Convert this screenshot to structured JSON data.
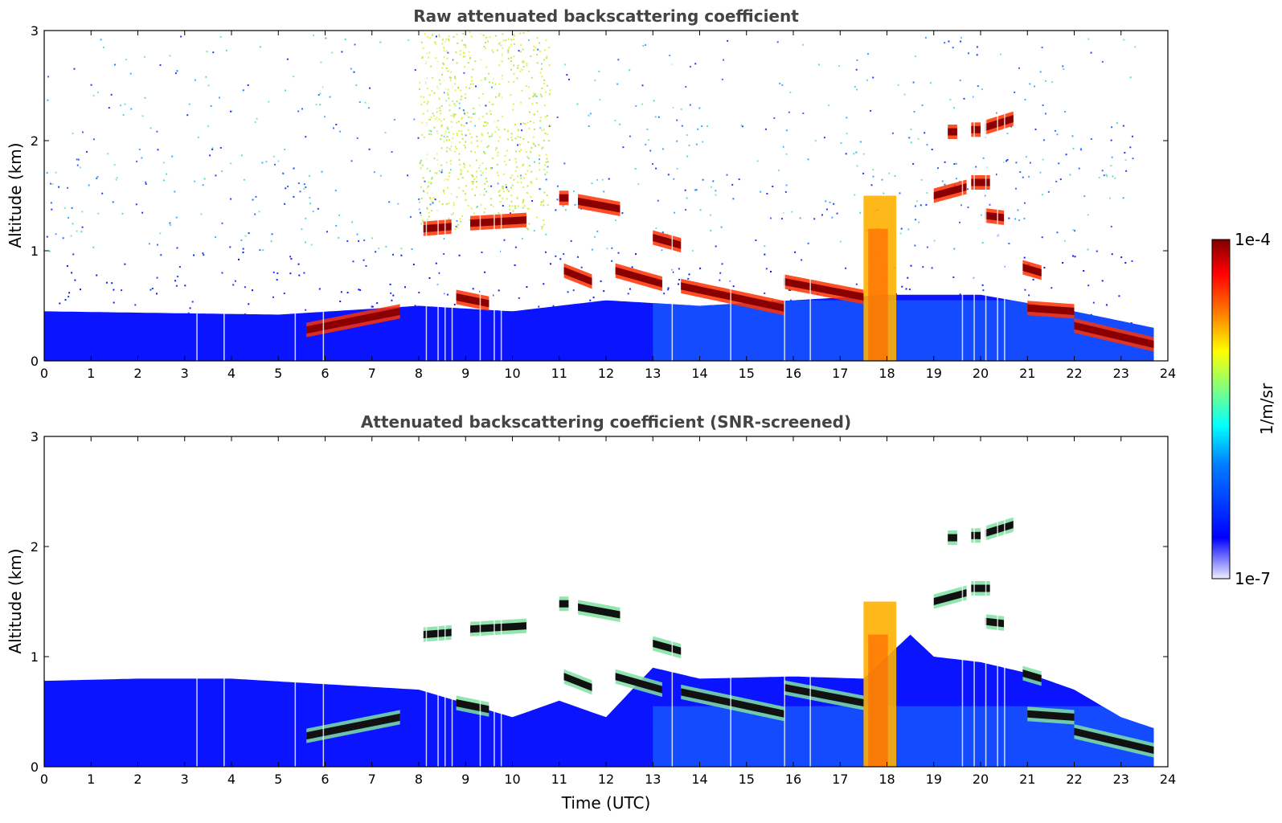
{
  "chart_data": [
    {
      "type": "heatmap",
      "title": "Raw attenuated backscattering coefficient",
      "xlabel": "",
      "ylabel": "Altitude (km)",
      "xlim": [
        0,
        24
      ],
      "ylim": [
        0,
        3
      ],
      "x_ticks": [
        "0",
        "1",
        "2",
        "3",
        "4",
        "5",
        "6",
        "7",
        "8",
        "9",
        "10",
        "11",
        "12",
        "13",
        "14",
        "15",
        "16",
        "17",
        "18",
        "19",
        "20",
        "21",
        "22",
        "23",
        "24"
      ],
      "y_ticks": [
        "0",
        "1",
        "2",
        "3"
      ],
      "data_end_hour": 23.7,
      "boundary_layer_top_km": [
        [
          0,
          0.45
        ],
        [
          5,
          0.42
        ],
        [
          8,
          0.5
        ],
        [
          10,
          0.45
        ],
        [
          12,
          0.55
        ],
        [
          14,
          0.5
        ],
        [
          16,
          0.55
        ],
        [
          18,
          0.6
        ],
        [
          20,
          0.6
        ],
        [
          22,
          0.45
        ],
        [
          23.7,
          0.3
        ]
      ],
      "aerosol_layers": [
        {
          "x_start": 5.6,
          "x_end": 7.6,
          "alt_start_km": 0.28,
          "alt_end_km": 0.45
        },
        {
          "x_start": 8.1,
          "x_end": 8.7,
          "alt_start_km": 1.2,
          "alt_end_km": 1.22
        },
        {
          "x_start": 8.8,
          "x_end": 9.5,
          "alt_start_km": 0.58,
          "alt_end_km": 0.52
        },
        {
          "x_start": 9.1,
          "x_end": 10.3,
          "alt_start_km": 1.25,
          "alt_end_km": 1.28
        },
        {
          "x_start": 11.0,
          "x_end": 11.2,
          "alt_start_km": 1.48,
          "alt_end_km": 1.48
        },
        {
          "x_start": 11.4,
          "x_end": 12.3,
          "alt_start_km": 1.45,
          "alt_end_km": 1.38
        },
        {
          "x_start": 11.1,
          "x_end": 11.7,
          "alt_start_km": 0.82,
          "alt_end_km": 0.72
        },
        {
          "x_start": 12.2,
          "x_end": 13.2,
          "alt_start_km": 0.82,
          "alt_end_km": 0.7
        },
        {
          "x_start": 13.0,
          "x_end": 13.6,
          "alt_start_km": 1.12,
          "alt_end_km": 1.05
        },
        {
          "x_start": 13.6,
          "x_end": 15.8,
          "alt_start_km": 0.68,
          "alt_end_km": 0.48
        },
        {
          "x_start": 15.8,
          "x_end": 17.5,
          "alt_start_km": 0.72,
          "alt_end_km": 0.58
        },
        {
          "x_start": 19.0,
          "x_end": 19.7,
          "alt_start_km": 1.5,
          "alt_end_km": 1.58
        },
        {
          "x_start": 19.3,
          "x_end": 19.5,
          "alt_start_km": 2.08,
          "alt_end_km": 2.08
        },
        {
          "x_start": 19.8,
          "x_end": 20.0,
          "alt_start_km": 2.1,
          "alt_end_km": 2.1
        },
        {
          "x_start": 20.1,
          "x_end": 20.7,
          "alt_start_km": 2.12,
          "alt_end_km": 2.2
        },
        {
          "x_start": 19.8,
          "x_end": 20.2,
          "alt_start_km": 1.62,
          "alt_end_km": 1.62
        },
        {
          "x_start": 20.1,
          "x_end": 20.5,
          "alt_start_km": 1.32,
          "alt_end_km": 1.3
        },
        {
          "x_start": 20.9,
          "x_end": 21.3,
          "alt_start_km": 0.85,
          "alt_end_km": 0.8
        },
        {
          "x_start": 21.0,
          "x_end": 22.0,
          "alt_start_km": 0.48,
          "alt_end_km": 0.45
        },
        {
          "x_start": 22.0,
          "x_end": 23.7,
          "alt_start_km": 0.32,
          "alt_end_km": 0.15
        }
      ],
      "dust_plume": {
        "x_start": 17.5,
        "x_end": 18.2,
        "alt_top_km": 1.5
      }
    },
    {
      "type": "heatmap",
      "title": "Attenuated backscattering coefficient (SNR-screened)",
      "xlabel": "Time (UTC)",
      "ylabel": "Altitude (km)",
      "xlim": [
        0,
        24
      ],
      "ylim": [
        0,
        3
      ],
      "x_ticks": [
        "0",
        "1",
        "2",
        "3",
        "4",
        "5",
        "6",
        "7",
        "8",
        "9",
        "10",
        "11",
        "12",
        "13",
        "14",
        "15",
        "16",
        "17",
        "18",
        "19",
        "20",
        "21",
        "22",
        "23",
        "24"
      ],
      "y_ticks": [
        "0",
        "1",
        "2",
        "3"
      ],
      "screened_top_km": [
        [
          0,
          0.78
        ],
        [
          2,
          0.8
        ],
        [
          4,
          0.8
        ],
        [
          6,
          0.75
        ],
        [
          8,
          0.7
        ],
        [
          10,
          0.45
        ],
        [
          11,
          0.6
        ],
        [
          12,
          0.45
        ],
        [
          13,
          0.9
        ],
        [
          14,
          0.8
        ],
        [
          16,
          0.82
        ],
        [
          17.5,
          0.8
        ],
        [
          18.5,
          1.2
        ],
        [
          19,
          1.0
        ],
        [
          20,
          0.95
        ],
        [
          21,
          0.85
        ],
        [
          22,
          0.7
        ],
        [
          23,
          0.45
        ],
        [
          23.7,
          0.35
        ]
      ]
    }
  ],
  "colorbar": {
    "label": "1/m/sr",
    "max_label": "1e-4",
    "min_label": "1e-7",
    "scale": "log",
    "range": [
      1e-07,
      0.0001
    ],
    "colormap": "jet"
  }
}
